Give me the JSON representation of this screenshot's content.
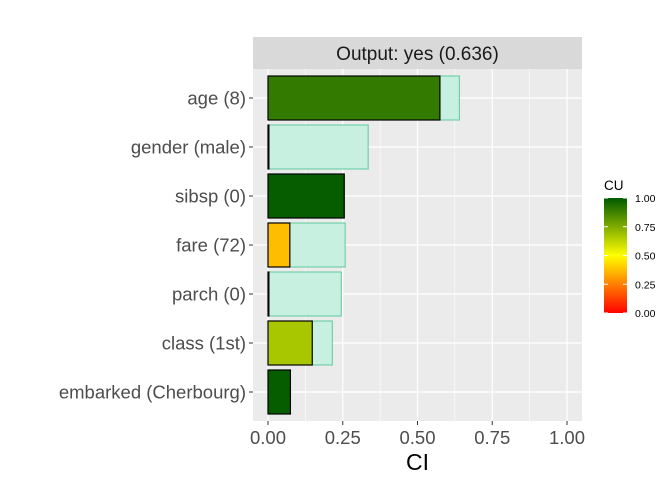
{
  "chart_data": {
    "type": "bar",
    "orientation": "horizontal",
    "strip_title": "Output: yes (0.636)",
    "xlabel": "CI",
    "ylabel": "",
    "xlim": [
      0,
      1
    ],
    "x_ticks": [
      "0.00",
      "0.25",
      "0.50",
      "0.75",
      "1.00"
    ],
    "x_tick_values": [
      0,
      0.25,
      0.5,
      0.75,
      1.0
    ],
    "grid": true,
    "categories": [
      "age (8)",
      "gender (male)",
      "sibsp (0)",
      "fare (72)",
      "parch (0)",
      "class (1st)",
      "embarked (Cherbourg)"
    ],
    "ci_values": [
      0.64,
      0.335,
      0.255,
      0.258,
      0.245,
      0.215,
      0.075
    ],
    "contribution_values": [
      0.575,
      0.003,
      0.255,
      0.073,
      0.003,
      0.148,
      0.075
    ],
    "cu_values": [
      0.9,
      0.95,
      0.99,
      0.37,
      0.95,
      0.67,
      0.99
    ],
    "ci_fill_color": "#c8f0e1",
    "ci_border_color": "#5cc9a0",
    "legend": {
      "title": "CU",
      "placement": "right",
      "ticks": [
        "1.00",
        "0.75",
        "0.50",
        "0.25",
        "0.00"
      ],
      "tick_values": [
        1.0,
        0.75,
        0.5,
        0.25,
        0.0
      ],
      "gradient_stops": [
        {
          "value": 0.0,
          "color": "#ff0000"
        },
        {
          "value": 0.5,
          "color": "#ffff00"
        },
        {
          "value": 1.0,
          "color": "#005a00"
        }
      ]
    }
  }
}
